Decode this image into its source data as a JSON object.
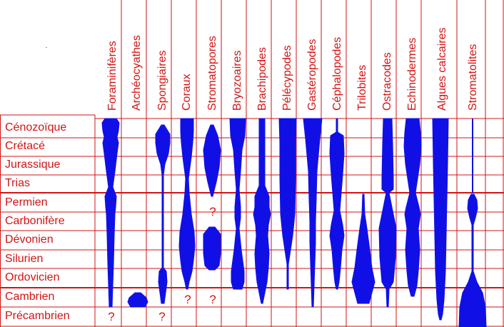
{
  "diagram": {
    "colors": {
      "grid": "#d21414",
      "range": "#1010e6",
      "text": "#d21414"
    },
    "periods": [
      "Cénozoïque",
      "Crétacé",
      "Jurassique",
      "Trias",
      "Permien",
      "Carbonifère",
      "Dévonien",
      "Silurien",
      "Ordovicien",
      "Cambrien",
      "Précambrien"
    ],
    "groups": [
      "Foraminifères",
      "Archéocyathes",
      "Spongiaires",
      "Coraux",
      "Stromatopores",
      "Bryozoaires",
      "Brachipodes",
      "Pélécypodes",
      "Gastéropodes",
      "Céphalopodes",
      "Trilobites",
      "Ostracodes",
      "Echinodermes",
      "Algues calcaires",
      "Stromatolites"
    ],
    "question_mark": "?",
    "uncertain_ranges": [
      {
        "group": "Foraminifères",
        "period": "Précambrien"
      },
      {
        "group": "Spongiaires",
        "period": "Précambrien"
      },
      {
        "group": "Coraux",
        "period": "Cambrien"
      },
      {
        "group": "Stromatopores",
        "period": "Cambrien"
      },
      {
        "group": "Stromatopores",
        "period": "Carbonifère"
      }
    ]
  }
}
